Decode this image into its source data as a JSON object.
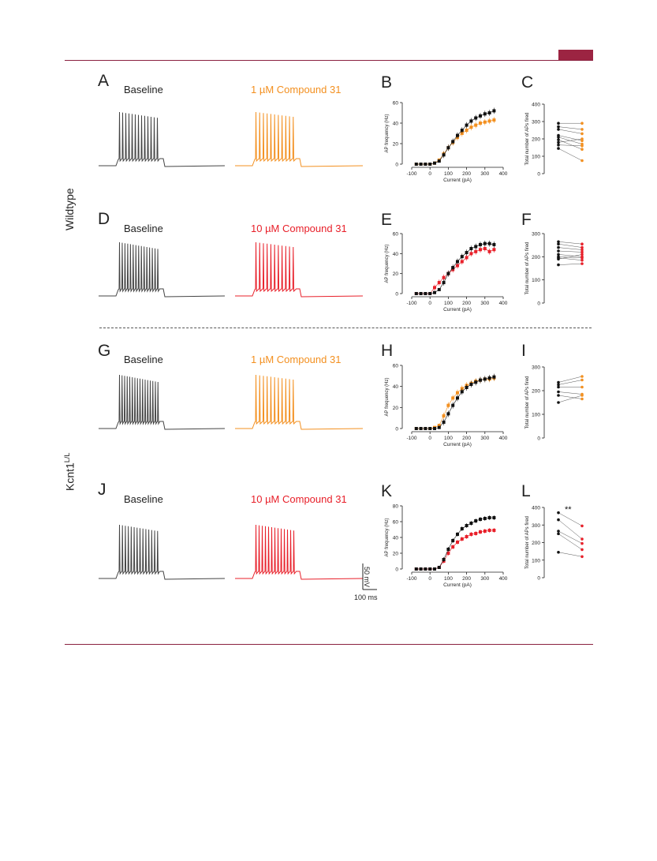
{
  "colors": {
    "accent": "#8b2140",
    "orange": "#f39020",
    "red": "#e8202a",
    "black": "#111111"
  },
  "rows": {
    "wildtype": "Wildtype",
    "kcnt_main": "Kcnt1",
    "kcnt_sup": "L/L"
  },
  "panels": [
    {
      "id": "A",
      "trace": "Baseline"
    },
    {
      "id": "B"
    },
    {
      "id": "C"
    },
    {
      "id": "D",
      "trace": "Baseline"
    },
    {
      "id": "E"
    },
    {
      "id": "F"
    },
    {
      "id": "G",
      "trace": "Baseline"
    },
    {
      "id": "H"
    },
    {
      "id": "I"
    },
    {
      "id": "J",
      "trace": "Baseline"
    },
    {
      "id": "K"
    },
    {
      "id": "L"
    }
  ],
  "conditions": {
    "A": "1 µM Compound 31",
    "D": "10 µM Compound 31",
    "G": "1 µM Compound 31",
    "J": "10 µM Compound 31"
  },
  "scale_bar": {
    "vertical": "50 mV",
    "horizontal": "100 ms"
  },
  "significance_L": "**",
  "chart_data": [
    {
      "panel": "B",
      "type": "line",
      "xlabel": "Current (pA)",
      "ylabel": "AP frequency (Hz)",
      "xlim": [
        -100,
        400
      ],
      "ylim": [
        0,
        60
      ],
      "xticks": [
        "-100",
        "0",
        "100",
        "200",
        "300",
        "400"
      ],
      "yticks": [
        "0",
        "20",
        "40",
        "60"
      ],
      "x": [
        -75,
        -50,
        -25,
        0,
        25,
        50,
        75,
        100,
        125,
        150,
        175,
        200,
        225,
        250,
        275,
        300,
        325,
        350
      ],
      "series": [
        {
          "color": "black",
          "values": [
            0,
            0,
            0,
            0,
            1,
            3,
            9,
            16,
            22,
            28,
            33,
            38,
            42,
            45,
            47,
            49,
            50,
            52
          ]
        },
        {
          "color": "orange",
          "values": [
            0,
            0,
            0,
            0,
            1,
            4,
            10,
            16,
            21,
            26,
            30,
            33,
            36,
            38,
            40,
            41,
            42,
            43
          ]
        }
      ]
    },
    {
      "panel": "C",
      "type": "line",
      "ylabel": "Total number of APs fired",
      "ylim": [
        0,
        400
      ],
      "yticks": [
        "0",
        "100",
        "200",
        "300",
        "400"
      ],
      "pairs": [
        [
          290,
          290
        ],
        [
          270,
          255
        ],
        [
          255,
          230
        ],
        [
          220,
          190
        ],
        [
          210,
          170
        ],
        [
          195,
          140
        ],
        [
          180,
          200
        ],
        [
          165,
          160
        ],
        [
          145,
          75
        ]
      ],
      "color2": "orange"
    },
    {
      "panel": "E",
      "type": "line",
      "xlabel": "Current (pA)",
      "ylabel": "AP frequency (Hz)",
      "xlim": [
        -100,
        400
      ],
      "ylim": [
        0,
        60
      ],
      "xticks": [
        "-100",
        "0",
        "100",
        "200",
        "300",
        "400"
      ],
      "yticks": [
        "0",
        "20",
        "40",
        "60"
      ],
      "x": [
        -75,
        -50,
        -25,
        0,
        25,
        50,
        75,
        100,
        125,
        150,
        175,
        200,
        225,
        250,
        275,
        300,
        325,
        350
      ],
      "series": [
        {
          "color": "black",
          "values": [
            0,
            0,
            0,
            0,
            1,
            4,
            11,
            20,
            26,
            32,
            37,
            41,
            45,
            47,
            49,
            50,
            50,
            49
          ]
        },
        {
          "color": "red",
          "values": [
            0,
            0,
            0,
            0,
            6,
            11,
            16,
            20,
            24,
            28,
            32,
            36,
            40,
            42,
            44,
            45,
            42,
            44
          ]
        }
      ]
    },
    {
      "panel": "F",
      "type": "line",
      "ylabel": "Total number of APs fired",
      "ylim": [
        0,
        300
      ],
      "yticks": [
        "0",
        "100",
        "200",
        "300"
      ],
      "pairs": [
        [
          265,
          255
        ],
        [
          255,
          240
        ],
        [
          240,
          230
        ],
        [
          225,
          220
        ],
        [
          210,
          200
        ],
        [
          200,
          195
        ],
        [
          195,
          185
        ],
        [
          190,
          210
        ],
        [
          165,
          170
        ]
      ],
      "color2": "red"
    },
    {
      "panel": "H",
      "type": "line",
      "xlabel": "Current (pA)",
      "ylabel": "AP frequency (Hz)",
      "xlim": [
        -100,
        400
      ],
      "ylim": [
        0,
        60
      ],
      "xticks": [
        "-100",
        "0",
        "100",
        "200",
        "300",
        "400"
      ],
      "yticks": [
        "0",
        "20",
        "40",
        "60"
      ],
      "x": [
        -75,
        -50,
        -25,
        0,
        25,
        50,
        75,
        100,
        125,
        150,
        175,
        200,
        225,
        250,
        275,
        300,
        325,
        350
      ],
      "series": [
        {
          "color": "black",
          "values": [
            0,
            0,
            0,
            0,
            0,
            1,
            6,
            14,
            22,
            29,
            35,
            39,
            42,
            44,
            46,
            47,
            48,
            49
          ]
        },
        {
          "color": "orange",
          "values": [
            0,
            0,
            0,
            0,
            1,
            3,
            12,
            22,
            29,
            34,
            38,
            41,
            43,
            45,
            46,
            47,
            47,
            48
          ]
        }
      ]
    },
    {
      "panel": "I",
      "type": "line",
      "ylabel": "Total number of APs fired",
      "ylim": [
        0,
        300
      ],
      "yticks": [
        "0",
        "100",
        "200",
        "300"
      ],
      "pairs": [
        [
          235,
          260
        ],
        [
          225,
          245
        ],
        [
          215,
          215
        ],
        [
          195,
          185
        ],
        [
          180,
          165
        ],
        [
          150,
          180
        ]
      ],
      "color2": "orange"
    },
    {
      "panel": "K",
      "type": "line",
      "xlabel": "Current (pA)",
      "ylabel": "AP frequency (Hz)",
      "xlim": [
        -100,
        400
      ],
      "ylim": [
        0,
        80
      ],
      "xticks": [
        "-100",
        "0",
        "100",
        "200",
        "300",
        "400"
      ],
      "yticks": [
        "0",
        "20",
        "40",
        "60",
        "80"
      ],
      "x": [
        -75,
        -50,
        -25,
        0,
        25,
        50,
        75,
        100,
        125,
        150,
        175,
        200,
        225,
        250,
        275,
        300,
        325,
        350
      ],
      "series": [
        {
          "color": "black",
          "values": [
            0,
            0,
            0,
            0,
            0,
            2,
            12,
            25,
            36,
            44,
            51,
            55,
            58,
            61,
            63,
            64,
            65,
            65
          ]
        },
        {
          "color": "red",
          "values": [
            0,
            0,
            0,
            0,
            0,
            2,
            10,
            20,
            28,
            34,
            38,
            41,
            44,
            45,
            47,
            48,
            49,
            49
          ]
        }
      ]
    },
    {
      "panel": "L",
      "type": "line",
      "ylabel": "Total number of APs fired",
      "ylim": [
        0,
        400
      ],
      "yticks": [
        "0",
        "100",
        "200",
        "300",
        "400"
      ],
      "pairs": [
        [
          370,
          295
        ],
        [
          330,
          220
        ],
        [
          265,
          195
        ],
        [
          250,
          160
        ],
        [
          145,
          120
        ]
      ],
      "color2": "red"
    }
  ]
}
